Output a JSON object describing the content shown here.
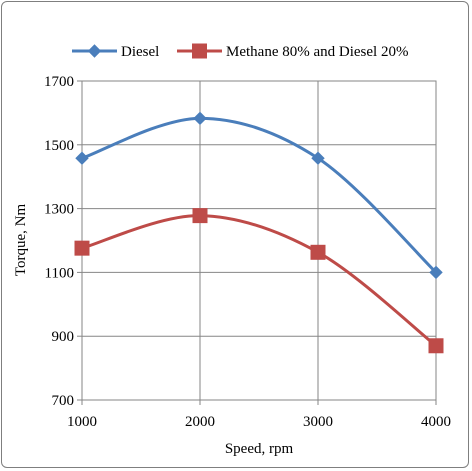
{
  "chart_data": {
    "type": "line",
    "title": "",
    "xlabel": "Speed, rpm",
    "ylabel": "Torque, Nm",
    "x": [
      1000,
      2000,
      3000,
      4000
    ],
    "xlim": [
      1000,
      4000
    ],
    "ylim": [
      700,
      1700
    ],
    "yticks": [
      700,
      900,
      1100,
      1300,
      1500,
      1700
    ],
    "xtick_labels": [
      "1000",
      "2000",
      "3000",
      "4000"
    ],
    "ytick_labels": [
      "700",
      "900",
      "1100",
      "1300",
      "1500",
      "1700"
    ],
    "grid": true,
    "legend_position": "top",
    "smooth": true,
    "series": [
      {
        "name": "Diesel",
        "values": [
          1458,
          1583,
          1458,
          1100
        ],
        "color": "#4a7ebb",
        "marker": "diamond"
      },
      {
        "name": "Methane 80% and Diesel 20%",
        "values": [
          1176,
          1278,
          1163,
          870
        ],
        "color": "#be4b48",
        "marker": "square"
      }
    ]
  }
}
